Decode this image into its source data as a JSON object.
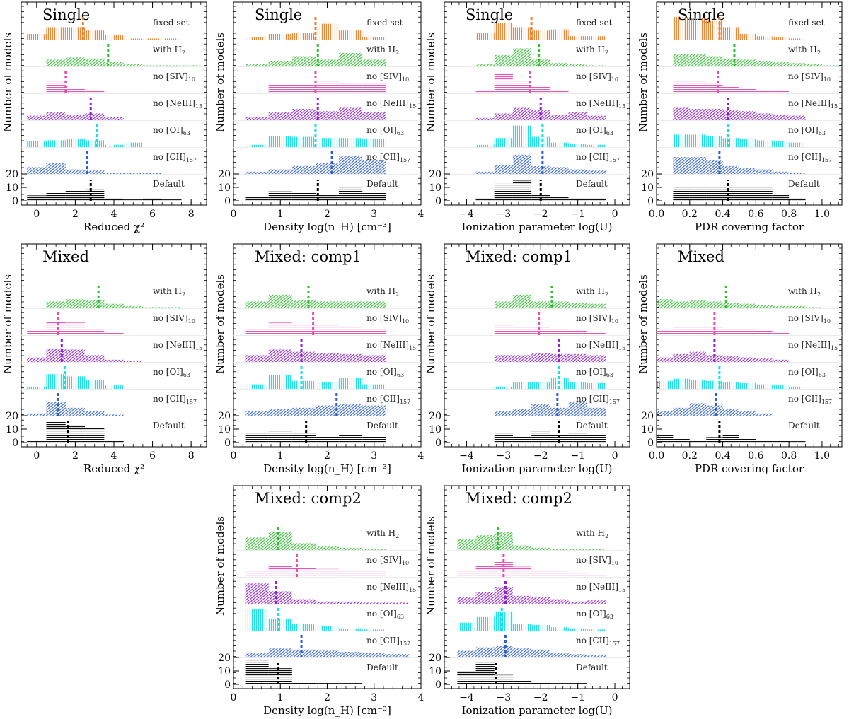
{
  "figure": {
    "ylabel": "Number of models",
    "y_tick_labels": [
      "0",
      "10",
      "20"
    ]
  },
  "colors": {
    "fixed set": "#f08030",
    "with H2": "#2fbf2f",
    "no [SIV]10": "#e050b0",
    "no [NeIII]15": "#9020d0",
    "no [OI]63": "#10e0e8",
    "no [CII]157": "#3060d0",
    "Default": "#000000"
  },
  "variables": {
    "chi2": {
      "xlabel": "Reduced χ²",
      "xlim": [
        -0.8,
        8.8
      ],
      "ticks": [
        0,
        2,
        4,
        6,
        8
      ],
      "tick_labels": [
        "0",
        "2",
        "4",
        "6",
        "8"
      ],
      "minor": 0.5,
      "bin": 1.0
    },
    "dens": {
      "xlabel": "Density log(n_H) [cm⁻³]",
      "xlim": [
        0,
        4
      ],
      "ticks": [
        0,
        1,
        2,
        3,
        4
      ],
      "tick_labels": [
        "0",
        "1",
        "2",
        "3",
        "4"
      ],
      "minor": 0.2,
      "bin": 0.5
    },
    "ion": {
      "xlabel": "Ionization parameter log(U)",
      "xlim": [
        -4.6,
        0.4
      ],
      "ticks": [
        -4,
        -3,
        -2,
        -1,
        0
      ],
      "tick_labels": [
        "−4",
        "−3",
        "−2",
        "−1",
        "0"
      ],
      "minor": 0.2,
      "bin": 0.5
    },
    "pdr": {
      "xlabel": "PDR covering factor",
      "xlim": [
        0,
        1.12
      ],
      "ticks": [
        0,
        0.2,
        0.4,
        0.6,
        0.8,
        1.0
      ],
      "tick_labels": [
        "0.0",
        "0.2",
        "0.4",
        "0.6",
        "0.8",
        "1.0"
      ],
      "minor": 0.05,
      "bin": 0.1
    }
  },
  "chart_data": [
    {
      "title": "Single",
      "type": "histogram",
      "var": "chi2",
      "show_xlabel": true,
      "rows": [
        {
          "label": "fixed set",
          "median": 2.4,
          "bins_start": -0.5,
          "counts": [
            0.25,
            0.55,
            0.55,
            0.4,
            0.2,
            0.05,
            0.05,
            0.05
          ]
        },
        {
          "label": "with H2",
          "median": 3.7,
          "bins_start": 0.5,
          "counts": [
            0.3,
            0.4,
            0.35,
            0.2,
            0.1,
            0.05,
            0.05,
            0.05
          ]
        },
        {
          "label": "no [SIV]10",
          "median": 1.5,
          "bins_start": -0.5,
          "counts": [
            0.05,
            0.6,
            0.25,
            0.15,
            0.05,
            0.05
          ]
        },
        {
          "label": "no [NeIII]15",
          "median": 2.8,
          "bins_start": -0.5,
          "counts": [
            0.2,
            0.35,
            0.25,
            0.3,
            0.15
          ]
        },
        {
          "label": "no [OI]63",
          "median": 3.1,
          "bins_start": -0.5,
          "counts": [
            0.25,
            0.3,
            0.35,
            0.3,
            0.1,
            0.2
          ]
        },
        {
          "label": "no [CII]157",
          "median": 2.6,
          "bins_start": -0.5,
          "counts": [
            0.3,
            0.5,
            0.2,
            0.15,
            0.05,
            0.05,
            0.05
          ]
        },
        {
          "label": "Default",
          "median": 2.8,
          "bins_start": -0.5,
          "counts": [
            4,
            6,
            8,
            9,
            2,
            1,
            2,
            1
          ]
        }
      ]
    },
    {
      "title": "Single",
      "type": "histogram",
      "var": "dens",
      "show_xlabel": true,
      "rows": [
        {
          "label": "fixed set",
          "median": 1.75,
          "bins_start": 0.25,
          "counts": [
            0.1,
            0.25,
            0.3,
            0.7,
            0.4,
            0.1
          ]
        },
        {
          "label": "with H2",
          "median": 1.8,
          "bins_start": 0.25,
          "counts": [
            0.1,
            0.25,
            0.45,
            0.3,
            0.6,
            0.3
          ]
        },
        {
          "label": "no [SIV]10",
          "median": 1.75,
          "bins_start": 0.25,
          "counts": [
            0.05,
            0.4,
            0.4,
            0.55,
            0.45,
            0.45
          ]
        },
        {
          "label": "no [NeIII]15",
          "median": 1.8,
          "bins_start": 0.25,
          "counts": [
            0.15,
            0.35,
            0.5,
            0.4,
            0.55,
            0.35
          ]
        },
        {
          "label": "no [OI]63",
          "median": 1.75,
          "bins_start": 0.25,
          "counts": [
            0.1,
            0.5,
            0.45,
            0.4,
            0.4,
            0.35
          ]
        },
        {
          "label": "no [CII]157",
          "median": 2.1,
          "bins_start": 0.25,
          "counts": [
            0.1,
            0.2,
            0.35,
            0.5,
            0.8,
            0.6
          ]
        },
        {
          "label": "Default",
          "median": 1.8,
          "bins_start": 0.25,
          "counts": [
            3,
            7,
            6,
            5,
            10,
            6
          ]
        }
      ]
    },
    {
      "title": "Single",
      "type": "histogram",
      "var": "ion",
      "show_xlabel": true,
      "rows": [
        {
          "label": "fixed set",
          "median": -2.25,
          "bins_start": -3.75,
          "counts": [
            0.3,
            0.75,
            0.55,
            0.4,
            0.45,
            0.15,
            0.15
          ]
        },
        {
          "label": "with H2",
          "median": -2.05,
          "bins_start": -3.75,
          "counts": [
            0.1,
            0.5,
            0.8,
            0.3,
            0.15,
            0.1,
            0.05
          ]
        },
        {
          "label": "no [SIV]10",
          "median": -2.3,
          "bins_start": -3.75,
          "counts": [
            0.1,
            0.9,
            0.6,
            0.3,
            0.1,
            0.05,
            0.05
          ]
        },
        {
          "label": "no [NeIII]15",
          "median": -2.0,
          "bins_start": -3.75,
          "counts": [
            0.1,
            0.3,
            0.55,
            0.45,
            0.25,
            0.35,
            0.2
          ]
        },
        {
          "label": "no [OI]63",
          "median": -1.95,
          "bins_start": -3.75,
          "counts": [
            0.1,
            0.4,
            0.95,
            0.45,
            0.2,
            0.15,
            0.1
          ]
        },
        {
          "label": "no [CII]157",
          "median": -1.95,
          "bins_start": -3.75,
          "counts": [
            0.1,
            0.4,
            0.85,
            0.35,
            0.3,
            0.2,
            0.15
          ]
        },
        {
          "label": "Default",
          "median": -2.0,
          "bins_start": -3.75,
          "counts": [
            2,
            13,
            15,
            5,
            3,
            2,
            2
          ]
        }
      ]
    },
    {
      "title": "Single",
      "type": "histogram",
      "var": "pdr",
      "show_xlabel": true,
      "rows": [
        {
          "label": "fixed set",
          "median": 0.38,
          "bins_start": 0.1,
          "counts": [
            1.0,
            0.95,
            0.85,
            0.55,
            0.25,
            0.15,
            0.1,
            0.05
          ]
        },
        {
          "label": "with H2",
          "median": 0.47,
          "bins_start": 0.1,
          "counts": [
            0.55,
            0.55,
            0.45,
            0.35,
            0.3,
            0.25,
            0.2,
            0.15,
            0.1,
            0.05
          ]
        },
        {
          "label": "no [SIV]10",
          "median": 0.37,
          "bins_start": 0.1,
          "counts": [
            0.55,
            0.55,
            0.45,
            0.3,
            0.2,
            0.15,
            0.1,
            0.05
          ]
        },
        {
          "label": "no [NeIII]15",
          "median": 0.43,
          "bins_start": 0.1,
          "counts": [
            0.55,
            0.5,
            0.5,
            0.45,
            0.4,
            0.3,
            0.25,
            0.2
          ]
        },
        {
          "label": "no [OI]63",
          "median": 0.43,
          "bins_start": 0.1,
          "counts": [
            0.55,
            0.55,
            0.5,
            0.4,
            0.35,
            0.3,
            0.25,
            0.2
          ]
        },
        {
          "label": "no [CII]157",
          "median": 0.38,
          "bins_start": 0.1,
          "counts": [
            0.75,
            0.75,
            0.6,
            0.35,
            0.25,
            0.2,
            0.1,
            0.05
          ]
        },
        {
          "label": "Default",
          "median": 0.43,
          "bins_start": 0.1,
          "counts": [
            11,
            11,
            11,
            10,
            10,
            10,
            5,
            2
          ]
        }
      ]
    },
    {
      "title": "Mixed",
      "type": "histogram",
      "var": "chi2",
      "show_xlabel": true,
      "rows": [
        {
          "label": "with H2",
          "median": 3.2,
          "bins_start": 0.5,
          "counts": [
            0.3,
            0.4,
            0.35,
            0.2,
            0.1,
            0.05,
            0.05
          ]
        },
        {
          "label": "no [SIV]10",
          "median": 1.1,
          "bins_start": -0.5,
          "counts": [
            0.2,
            0.6,
            0.55,
            0.3,
            0.1
          ]
        },
        {
          "label": "no [NeIII]15",
          "median": 1.3,
          "bins_start": -0.5,
          "counts": [
            0.2,
            0.6,
            0.55,
            0.3,
            0.1,
            0.05
          ]
        },
        {
          "label": "no [OI]63",
          "median": 1.45,
          "bins_start": -0.5,
          "counts": [
            0.1,
            0.65,
            0.55,
            0.4,
            0.15
          ]
        },
        {
          "label": "no [CII]157",
          "median": 1.1,
          "bins_start": -0.5,
          "counts": [
            0.1,
            0.6,
            0.35,
            0.2,
            0.05
          ]
        },
        {
          "label": "Default",
          "median": 1.6,
          "bins_start": -0.5,
          "counts": [
            2,
            16,
            13,
            11,
            2
          ]
        }
      ]
    },
    {
      "title": "Mixed: comp1",
      "type": "histogram",
      "var": "dens",
      "show_xlabel": true,
      "rows": [
        {
          "label": "with H2",
          "median": 1.6,
          "bins_start": 0.25,
          "counts": [
            0.3,
            0.6,
            0.35,
            0.3,
            0.3,
            0.3
          ]
        },
        {
          "label": "no [SIV]10",
          "median": 1.7,
          "bins_start": 0.25,
          "counts": [
            0.25,
            0.55,
            0.45,
            0.45,
            0.4,
            0.3
          ]
        },
        {
          "label": "no [NeIII]15",
          "median": 1.45,
          "bins_start": 0.25,
          "counts": [
            0.3,
            0.55,
            0.45,
            0.4,
            0.35,
            0.3
          ]
        },
        {
          "label": "no [OI]63",
          "median": 1.45,
          "bins_start": 0.25,
          "counts": [
            0.2,
            0.6,
            0.35,
            0.3,
            0.5,
            0.2
          ]
        },
        {
          "label": "no [CII]157",
          "median": 2.2,
          "bins_start": 0.25,
          "counts": [
            0.2,
            0.3,
            0.35,
            0.45,
            0.5,
            0.45
          ]
        },
        {
          "label": "Default",
          "median": 1.55,
          "bins_start": 0.25,
          "counts": [
            7,
            9,
            7,
            5,
            6,
            5
          ]
        }
      ]
    },
    {
      "title": "Mixed: comp1",
      "type": "histogram",
      "var": "ion",
      "show_xlabel": true,
      "rows": [
        {
          "label": "with H2",
          "median": -1.7,
          "bins_start": -3.25,
          "counts": [
            0.3,
            0.6,
            0.3,
            0.3,
            0.25,
            0.2
          ]
        },
        {
          "label": "no [SIV]10",
          "median": -2.05,
          "bins_start": -3.25,
          "counts": [
            0.5,
            0.35,
            0.35,
            0.3,
            0.2,
            0.15
          ]
        },
        {
          "label": "no [NeIII]15",
          "median": -1.5,
          "bins_start": -3.25,
          "counts": [
            0.3,
            0.3,
            0.4,
            0.35,
            0.35,
            0.3
          ]
        },
        {
          "label": "no [OI]63",
          "median": -1.5,
          "bins_start": -3.25,
          "counts": [
            0.1,
            0.3,
            0.3,
            0.5,
            0.3,
            0.25
          ]
        },
        {
          "label": "no [CII]157",
          "median": -1.55,
          "bins_start": -3.25,
          "counts": [
            0.2,
            0.3,
            0.5,
            0.35,
            0.6,
            0.35
          ]
        },
        {
          "label": "Default",
          "median": -1.5,
          "bins_start": -3.25,
          "counts": [
            7,
            5,
            9,
            6,
            8,
            6
          ]
        }
      ]
    },
    {
      "title": "Mixed",
      "type": "histogram",
      "var": "pdr",
      "show_xlabel": true,
      "rows": [
        {
          "label": "with H2",
          "median": 0.42,
          "bins_start": 0.0,
          "counts": [
            0.4,
            0.3,
            0.35,
            0.3,
            0.25,
            0.2,
            0.15,
            0.1,
            0.1,
            0.05
          ]
        },
        {
          "label": "no [SIV]10",
          "median": 0.35,
          "bins_start": 0.0,
          "counts": [
            0.2,
            0.35,
            0.4,
            0.35,
            0.3,
            0.25,
            0.2,
            0.15
          ]
        },
        {
          "label": "no [NeIII]15",
          "median": 0.35,
          "bins_start": 0.0,
          "counts": [
            0.2,
            0.35,
            0.45,
            0.3,
            0.25,
            0.2,
            0.15,
            0.1
          ]
        },
        {
          "label": "no [OI]63",
          "median": 0.38,
          "bins_start": 0.0,
          "counts": [
            0.35,
            0.45,
            0.4,
            0.35,
            0.3,
            0.25,
            0.2,
            0.15,
            0.1
          ]
        },
        {
          "label": "no [CII]157",
          "median": 0.36,
          "bins_start": 0.0,
          "counts": [
            0.2,
            0.35,
            0.55,
            0.45,
            0.3,
            0.2,
            0.1
          ]
        },
        {
          "label": "Default",
          "median": 0.38,
          "bins_start": 0.0,
          "counts": [
            6,
            3,
            2,
            4,
            6,
            3,
            2,
            2,
            1
          ]
        }
      ]
    },
    {
      "title": "Mixed: comp2",
      "type": "histogram",
      "var": "dens",
      "show_xlabel": true,
      "rows": [
        {
          "label": "with H2",
          "median": 0.95,
          "bins_start": 0.25,
          "counts": [
            0.55,
            0.8,
            0.3,
            0.15,
            0.1,
            0.05
          ]
        },
        {
          "label": "no [SIV]10",
          "median": 1.35,
          "bins_start": 0.25,
          "counts": [
            0.3,
            0.5,
            0.4,
            0.35,
            0.3,
            0.25
          ]
        },
        {
          "label": "no [NeIII]15",
          "median": 0.9,
          "bins_start": 0.25,
          "counts": [
            0.9,
            0.55,
            0.2,
            0.1,
            0.1,
            0.05,
            0.05
          ]
        },
        {
          "label": "no [OI]63",
          "median": 0.95,
          "bins_start": 0.25,
          "counts": [
            0.95,
            0.5,
            0.3,
            0.2,
            0.1,
            0.05
          ]
        },
        {
          "label": "no [CII]157",
          "median": 1.45,
          "bins_start": 0.25,
          "counts": [
            0.2,
            0.4,
            0.35,
            0.3,
            0.25,
            0.2,
            0.15
          ]
        },
        {
          "label": "Default",
          "median": 0.95,
          "bins_start": 0.25,
          "counts": [
            19,
            12,
            2,
            1,
            1
          ]
        }
      ]
    },
    {
      "title": "Mixed: comp2",
      "type": "histogram",
      "var": "ion",
      "show_xlabel": true,
      "rows": [
        {
          "label": "with H2",
          "median": -3.15,
          "bins_start": -4.25,
          "counts": [
            0.5,
            0.65,
            0.8,
            0.2,
            0.1,
            0.05,
            0.05,
            0.05
          ]
        },
        {
          "label": "no [SIV]10",
          "median": -3.0,
          "bins_start": -4.25,
          "counts": [
            0.3,
            0.5,
            0.7,
            0.45,
            0.3,
            0.25,
            0.15,
            0.1
          ]
        },
        {
          "label": "no [NeIII]15",
          "median": -2.95,
          "bins_start": -4.25,
          "counts": [
            0.3,
            0.5,
            0.75,
            0.35,
            0.3,
            0.2,
            0.1,
            0.15
          ]
        },
        {
          "label": "no [OI]63",
          "median": -3.05,
          "bins_start": -4.25,
          "counts": [
            0.35,
            0.6,
            0.85,
            0.3,
            0.25,
            0.15,
            0.1,
            0.05
          ]
        },
        {
          "label": "no [CII]157",
          "median": -2.95,
          "bins_start": -4.25,
          "counts": [
            0.3,
            0.45,
            0.5,
            0.4,
            0.35,
            0.2,
            0.15,
            0.1
          ]
        },
        {
          "label": "Default",
          "median": -3.2,
          "bins_start": -4.25,
          "counts": [
            10,
            17,
            7,
            3,
            2,
            1,
            1
          ]
        }
      ]
    }
  ]
}
